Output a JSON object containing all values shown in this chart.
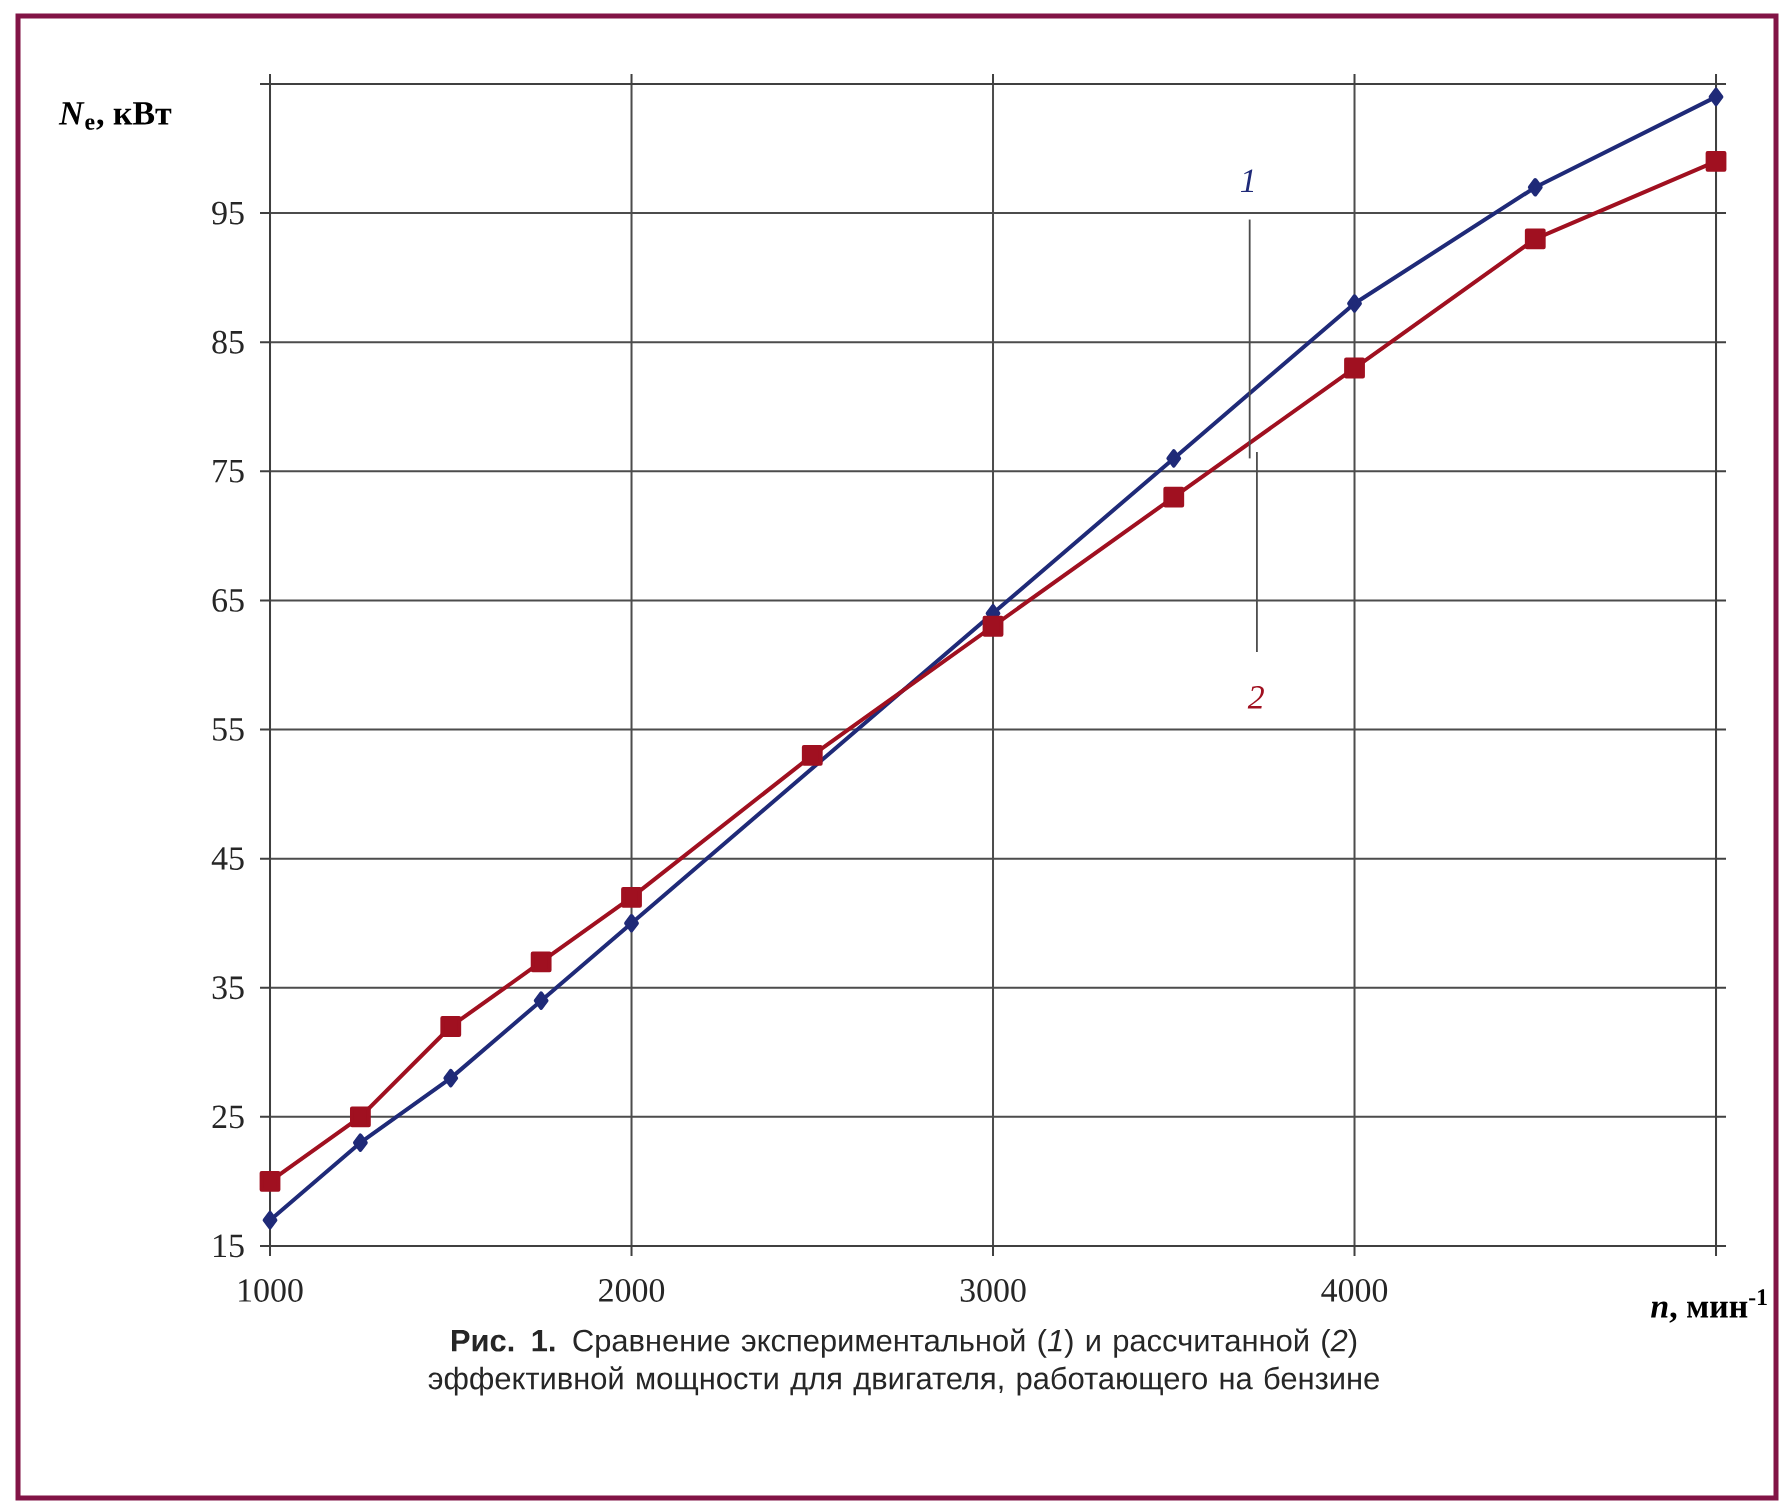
{
  "chart_data": {
    "type": "line",
    "xlabel": "*n*, мин$^{-1}$",
    "ylabel": "*N*$_{e}$, кВт",
    "x": [
      1000,
      1250,
      1500,
      1750,
      2000,
      2500,
      3000,
      3500,
      4000,
      4500,
      5000
    ],
    "series": [
      {
        "name": "1",
        "color": "#1f2a78",
        "marker": "diamond",
        "values": [
          17,
          23,
          28,
          34,
          40,
          null,
          64,
          76,
          88,
          97,
          104
        ]
      },
      {
        "name": "2",
        "color": "#a01020",
        "marker": "square",
        "values": [
          20,
          25,
          32,
          37,
          42,
          53,
          63,
          73,
          83,
          93,
          99
        ]
      }
    ],
    "xlim": [
      1000,
      5000
    ],
    "ylim": [
      15,
      105
    ],
    "xticks": [
      1000,
      2000,
      3000,
      4000,
      {
        "value": 5000,
        "label": null
      }
    ],
    "yticks": [
      15,
      25,
      35,
      45,
      55,
      65,
      75,
      85,
      95,
      {
        "value": 105,
        "label": null
      }
    ],
    "grid": true,
    "legend": false,
    "line_style": "solid",
    "annotations": [
      "**Рис. 1.** Сравнение экспериментальной (*1*) и рассчитанной (*2*) эффективной мощности для двигателя, работающего на бензине"
    ]
  }
}
